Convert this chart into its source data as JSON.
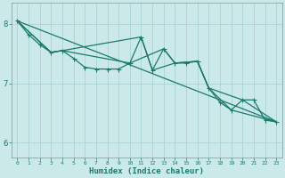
{
  "xlabel": "Humidex (Indice chaleur)",
  "ylabel": "",
  "xlim": [
    -0.5,
    23.5
  ],
  "ylim": [
    5.75,
    8.35
  ],
  "yticks": [
    6,
    7,
    8
  ],
  "xticks": [
    0,
    1,
    2,
    3,
    4,
    5,
    6,
    7,
    8,
    9,
    10,
    11,
    12,
    13,
    14,
    15,
    16,
    17,
    18,
    19,
    20,
    21,
    22,
    23
  ],
  "bg_color": "#cce9e9",
  "plot_bg_color": "#cce9e9",
  "grid_color": "#aad4d4",
  "line_color": "#1a7a6e",
  "line_width": 0.9,
  "marker": "D",
  "marker_size": 1.8,
  "series1_x": [
    0,
    1,
    2,
    3,
    4,
    5,
    6,
    7,
    8,
    9,
    10,
    11,
    12,
    13,
    14,
    15,
    16,
    17,
    18,
    19,
    20,
    21,
    22,
    23
  ],
  "series1_y": [
    8.05,
    7.82,
    7.65,
    7.52,
    7.55,
    7.42,
    7.27,
    7.24,
    7.24,
    7.24,
    7.34,
    7.78,
    7.22,
    7.58,
    7.34,
    7.34,
    7.37,
    6.92,
    6.68,
    6.55,
    6.72,
    6.72,
    6.38,
    6.35
  ],
  "series2_x": [
    0,
    23
  ],
  "series2_y": [
    8.05,
    6.35
  ],
  "series3_x": [
    0,
    3,
    4,
    10,
    13,
    14,
    16,
    17,
    19,
    23
  ],
  "series3_y": [
    8.05,
    7.52,
    7.55,
    7.34,
    7.58,
    7.34,
    7.37,
    6.92,
    6.55,
    6.35
  ],
  "series4_x": [
    0,
    3,
    4,
    11,
    12,
    14,
    16,
    17,
    20,
    23
  ],
  "series4_y": [
    8.05,
    7.52,
    7.55,
    7.78,
    7.22,
    7.34,
    7.37,
    6.92,
    6.72,
    6.35
  ]
}
